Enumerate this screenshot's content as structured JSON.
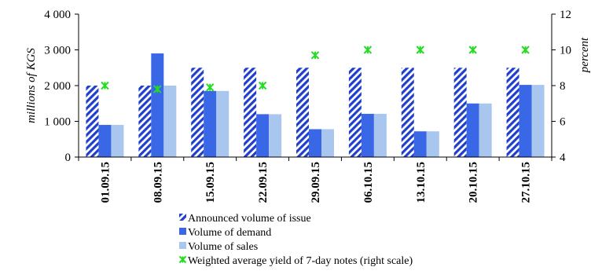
{
  "chart_data": {
    "type": "bar",
    "categories": [
      "01.09.15",
      "08.09.15",
      "15.09.15",
      "22.09.15",
      "29.09.15",
      "06.10.15",
      "13.10.15",
      "20.10.15",
      "27.10.15"
    ],
    "series": [
      {
        "name": "Announced volume of issue",
        "type": "bar",
        "axis": "left",
        "pattern": "diagonal-stripes",
        "color": "#1f3fcc",
        "values": [
          2000,
          2000,
          2500,
          2500,
          2500,
          2500,
          2500,
          2500,
          2500
        ]
      },
      {
        "name": "Volume of demand",
        "type": "bar",
        "axis": "left",
        "color": "#3a67e6",
        "values": [
          900,
          2900,
          1850,
          1200,
          780,
          1210,
          720,
          1500,
          2020
        ]
      },
      {
        "name": "Volume of sales",
        "type": "bar",
        "axis": "left",
        "color": "#a9c6ee",
        "values": [
          900,
          2000,
          1850,
          1200,
          780,
          1210,
          720,
          1500,
          2020
        ]
      },
      {
        "name": "Weighted average yield of 7-day notes (right scale)",
        "type": "scatter",
        "axis": "right",
        "marker": "asterisk",
        "color": "#22dd22",
        "values": [
          8.0,
          7.8,
          7.9,
          8.0,
          9.7,
          10.0,
          10.0,
          10.0,
          10.0
        ]
      }
    ],
    "ylabel": "millions of KGS",
    "ylim": [
      0,
      4000
    ],
    "yticks": [
      "0",
      "1 000",
      "2 000",
      "3 000",
      "4 000"
    ],
    "y2label": "percent",
    "y2lim": [
      4,
      12
    ],
    "y2ticks": [
      "4",
      "6",
      "8",
      "10",
      "12"
    ],
    "grid": false,
    "legend_position": "bottom"
  }
}
